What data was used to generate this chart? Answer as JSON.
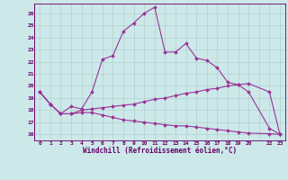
{
  "xlabel": "Windchill (Refroidissement éolien,°C)",
  "background_color": "#cce8e8",
  "line_color": "#993399",
  "xlim": [
    -0.5,
    23.5
  ],
  "ylim": [
    15.5,
    26.8
  ],
  "xtick_labels": [
    "0",
    "1",
    "2",
    "3",
    "4",
    "5",
    "6",
    "7",
    "8",
    "9",
    "10",
    "11",
    "12",
    "13",
    "14",
    "15",
    "16",
    "17",
    "18",
    "19",
    "20",
    "",
    "22",
    "23"
  ],
  "xtick_positions": [
    0,
    1,
    2,
    3,
    4,
    5,
    6,
    7,
    8,
    9,
    10,
    11,
    12,
    13,
    14,
    15,
    16,
    17,
    18,
    19,
    20,
    21,
    22,
    23
  ],
  "yticks": [
    16,
    17,
    18,
    19,
    20,
    21,
    22,
    23,
    24,
    25,
    26
  ],
  "line1_x": [
    0,
    1,
    2,
    3,
    4,
    5,
    6,
    7,
    8,
    9,
    10,
    11,
    12,
    13,
    14,
    15,
    16,
    17,
    18,
    19,
    20,
    22,
    23
  ],
  "line1_y": [
    19.5,
    18.5,
    17.7,
    18.3,
    18.1,
    19.5,
    22.2,
    22.5,
    24.5,
    25.2,
    26.0,
    26.5,
    22.8,
    22.8,
    23.5,
    22.3,
    22.1,
    21.5,
    20.3,
    20.1,
    19.5,
    16.5,
    16.0
  ],
  "line2_x": [
    0,
    1,
    2,
    3,
    4,
    5,
    6,
    7,
    8,
    9,
    10,
    11,
    12,
    13,
    14,
    15,
    16,
    17,
    18,
    19,
    20,
    22,
    23
  ],
  "line2_y": [
    19.5,
    18.5,
    17.7,
    17.7,
    18.0,
    18.1,
    18.2,
    18.3,
    18.4,
    18.5,
    18.7,
    18.9,
    19.0,
    19.2,
    19.4,
    19.5,
    19.7,
    19.8,
    20.0,
    20.1,
    20.2,
    19.5,
    16.0
  ],
  "line3_x": [
    0,
    1,
    2,
    3,
    4,
    5,
    6,
    7,
    8,
    9,
    10,
    11,
    12,
    13,
    14,
    15,
    16,
    17,
    18,
    19,
    20,
    22,
    23
  ],
  "line3_y": [
    19.5,
    18.5,
    17.7,
    17.7,
    17.8,
    17.8,
    17.6,
    17.4,
    17.2,
    17.1,
    17.0,
    16.9,
    16.8,
    16.7,
    16.7,
    16.6,
    16.5,
    16.4,
    16.3,
    16.2,
    16.1,
    16.05,
    16.0
  ]
}
